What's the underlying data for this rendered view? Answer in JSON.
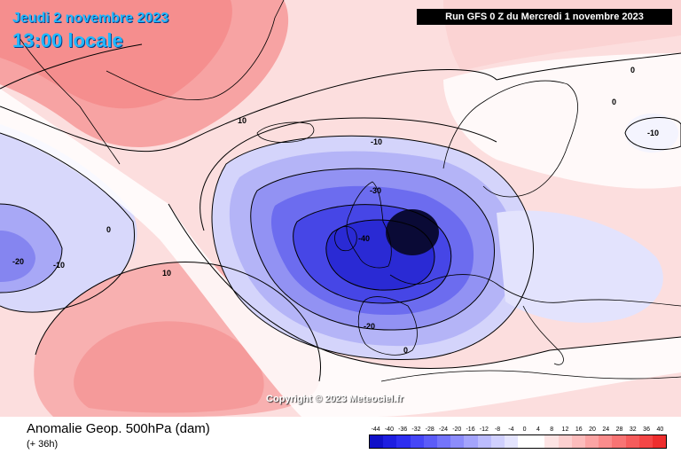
{
  "header": {
    "date": "Jeudi 2 novembre 2023",
    "time": "13:00 locale",
    "run": "Run GFS 0 Z du Mercredi 1 novembre 2023"
  },
  "copyright": "Copyright © 2023 Meteociel.fr",
  "footer": {
    "title": "Anomalie Geop. 500hPa (dam)",
    "subtitle": "(+ 36h)"
  },
  "legend": {
    "ticks": [
      "-44",
      "-40",
      "-36",
      "-32",
      "-28",
      "-24",
      "-20",
      "-16",
      "-12",
      "-8",
      "-4",
      "0",
      "4",
      "8",
      "12",
      "16",
      "20",
      "24",
      "28",
      "32",
      "36",
      "40"
    ],
    "colors": [
      "#1010c8",
      "#1e1ee0",
      "#2e2ef0",
      "#4646f6",
      "#5c5cf8",
      "#7474fa",
      "#8c8cfb",
      "#a4a4fc",
      "#bcbcfd",
      "#d0d0fe",
      "#e4e4fe",
      "#ffffff",
      "#ffffff",
      "#fde4e4",
      "#fcd0d0",
      "#fcbcbc",
      "#fba4a4",
      "#fa8c8c",
      "#f87474",
      "#f65c5c",
      "#f44646",
      "#ee2e2e"
    ]
  },
  "contour_labels": {
    "l10_greenland": "10",
    "lm10_atlantic": "-10",
    "lm30": "-30",
    "lm40": "-40",
    "lm20_iberia": "-20",
    "l0_biscay": "0",
    "l0_left": "0",
    "lm20_west": "-20",
    "lm10_west": "-10",
    "l10_south": "10",
    "l0_scandinavia": "0",
    "l0_finland": "0",
    "lm10_russia": "-10"
  }
}
